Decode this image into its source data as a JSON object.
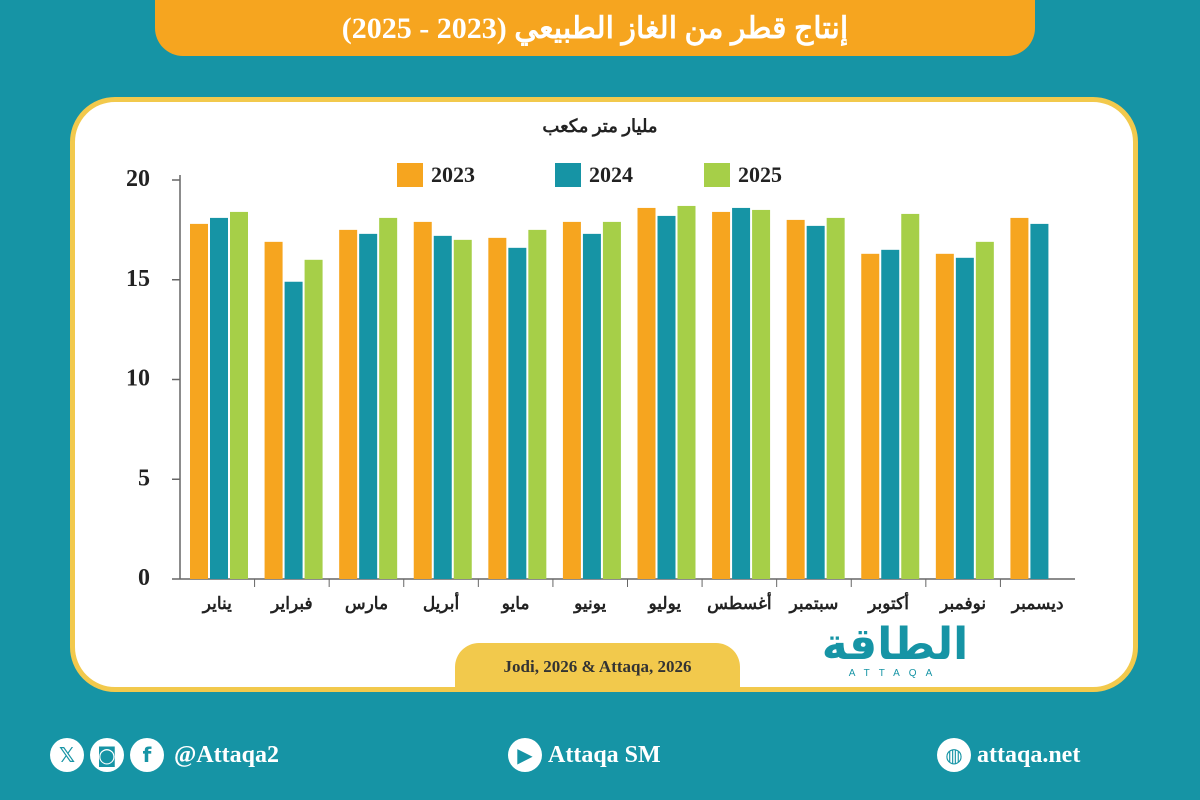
{
  "title": "إنتاج قطر من الغاز الطبيعي (2023 - 2025)",
  "source": "Jodi, 2026 & Attaqa, 2026",
  "logo": {
    "arabic": "الطاقة",
    "latin": "ATTAQA"
  },
  "footer": {
    "social_handle": "@Attaqa2",
    "youtube": "Attaqa SM",
    "website": "attaqa.net",
    "icons": [
      "x-icon",
      "instagram-icon",
      "facebook-icon",
      "youtube-icon",
      "globe-icon"
    ]
  },
  "colors": {
    "2023": "#f6a51f",
    "2024": "#1694a5",
    "2025": "#a6cf48"
  },
  "chart_data": {
    "type": "bar",
    "title": "",
    "ylabel": "مليار متر مكعب",
    "ylim": [
      0,
      20
    ],
    "yticks": [
      "0",
      "5",
      "10",
      "15",
      "20"
    ],
    "grid": false,
    "legend_position": "top",
    "categories": [
      "يناير",
      "فبراير",
      "مارس",
      "أبريل",
      "مايو",
      "يونيو",
      "يوليو",
      "أغسطس",
      "سبتمبر",
      "أكتوبر",
      "نوفمبر",
      "ديسمبر"
    ],
    "series": [
      {
        "name": "2023",
        "values": [
          17.8,
          16.9,
          17.5,
          17.9,
          17.1,
          17.9,
          18.6,
          18.4,
          18.0,
          16.3,
          16.3,
          18.1
        ]
      },
      {
        "name": "2024",
        "values": [
          18.1,
          14.9,
          17.3,
          17.2,
          16.6,
          17.3,
          18.2,
          18.6,
          17.7,
          16.5,
          16.1,
          17.8
        ]
      },
      {
        "name": "2025",
        "values": [
          18.4,
          16.0,
          18.1,
          17.0,
          17.5,
          17.9,
          18.7,
          18.5,
          18.1,
          18.3,
          16.9,
          null
        ]
      }
    ]
  }
}
